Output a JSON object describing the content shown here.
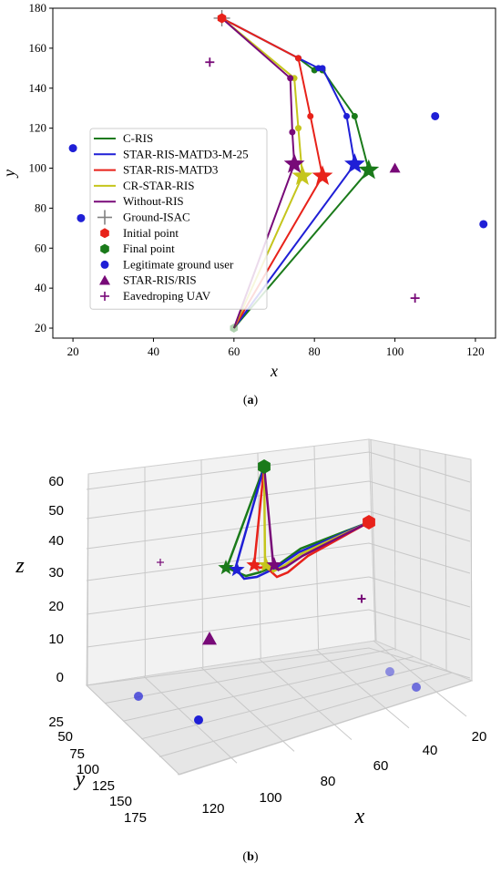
{
  "panel_a_caption": "a",
  "panel_b_caption": "b",
  "colors": {
    "green": "#1a7a1a",
    "blue": "#1f1fd6",
    "red": "#e8221a",
    "yellow": "#c5c51c",
    "purple": "#780a78",
    "gray": "#808080"
  },
  "chart_data": [
    {
      "type": "line",
      "panel": "a",
      "xlabel": "x",
      "ylabel": "y",
      "xlim": [
        15,
        125
      ],
      "ylim": [
        15,
        180
      ],
      "xticks": [
        20,
        40,
        60,
        80,
        100,
        120
      ],
      "yticks": [
        20,
        40,
        60,
        80,
        100,
        120,
        140,
        160,
        180
      ],
      "grid": false,
      "legend_position": "lower-left",
      "series": [
        {
          "name": "C-RIS",
          "color": "green",
          "x": [
            57,
            76,
            80,
            82,
            90,
            93.5,
            60
          ],
          "y": [
            175,
            155,
            149,
            149,
            126,
            99,
            20
          ]
        },
        {
          "name": "STAR-RIS-MATD3-M-25",
          "color": "blue",
          "x": [
            57,
            76,
            81,
            82,
            88,
            90,
            60
          ],
          "y": [
            175,
            155,
            150,
            150,
            126,
            102,
            20
          ]
        },
        {
          "name": "STAR-RIS-MATD3",
          "color": "red",
          "x": [
            57,
            76,
            79,
            82,
            60
          ],
          "y": [
            175,
            155,
            126,
            96,
            20
          ]
        },
        {
          "name": "CR-STAR-RIS",
          "color": "yellow",
          "x": [
            57,
            75,
            76,
            77,
            60
          ],
          "y": [
            175,
            145,
            120,
            96,
            20
          ]
        },
        {
          "name": "Without-RIS",
          "color": "purple",
          "x": [
            57,
            74,
            74.5,
            75,
            60
          ],
          "y": [
            175,
            145,
            118,
            102,
            20
          ]
        }
      ],
      "legend_entries": [
        {
          "label": "C-RIS",
          "marker": "line",
          "color": "green"
        },
        {
          "label": "STAR-RIS-MATD3-M-25",
          "marker": "line",
          "color": "blue"
        },
        {
          "label": "STAR-RIS-MATD3",
          "marker": "line",
          "color": "red"
        },
        {
          "label": "CR-STAR-RIS",
          "marker": "line",
          "color": "yellow"
        },
        {
          "label": "Without-RIS",
          "marker": "line",
          "color": "purple"
        },
        {
          "label": "Ground-ISAC",
          "marker": "plus",
          "color": "gray"
        },
        {
          "label": "Initial point",
          "marker": "hexagon",
          "color": "red"
        },
        {
          "label": "Final point",
          "marker": "hexagon",
          "color": "green"
        },
        {
          "label": "Legitimate ground user",
          "marker": "circle",
          "color": "blue"
        },
        {
          "label": "STAR-RIS/RIS",
          "marker": "triangle",
          "color": "purple"
        },
        {
          "label": "Eavedroping UAV",
          "marker": "plus",
          "color": "purple"
        }
      ],
      "points": {
        "ground_isac": [
          [
            57,
            175
          ]
        ],
        "initial_point": [
          [
            57,
            175
          ]
        ],
        "final_point": [
          [
            60,
            20
          ]
        ],
        "legitimate_ground_users": [
          [
            20,
            110
          ],
          [
            22,
            75
          ],
          [
            110,
            126
          ],
          [
            122,
            72
          ]
        ],
        "star_ris": [
          [
            100,
            100
          ]
        ],
        "eavesdropping_uavs": [
          [
            54,
            153
          ],
          [
            105,
            35
          ]
        ],
        "star_end_markers": [
          {
            "series": "C-RIS",
            "x": 93.5,
            "y": 99
          },
          {
            "series": "STAR-RIS-MATD3-M-25",
            "x": 90,
            "y": 102
          },
          {
            "series": "STAR-RIS-MATD3",
            "x": 82,
            "y": 96
          },
          {
            "series": "CR-STAR-RIS",
            "x": 77,
            "y": 96
          },
          {
            "series": "Without-RIS",
            "x": 75,
            "y": 102
          }
        ]
      }
    },
    {
      "type": "line",
      "panel": "b",
      "projection": "3d",
      "xlabel": "x",
      "ylabel": "y",
      "zlabel": "z",
      "xticks": [
        20,
        40,
        60,
        80,
        100,
        120
      ],
      "yticks": [
        25,
        50,
        75,
        100,
        125,
        150,
        175
      ],
      "zticks": [
        0,
        10,
        20,
        30,
        40,
        50,
        60
      ],
      "grid": true
    }
  ]
}
